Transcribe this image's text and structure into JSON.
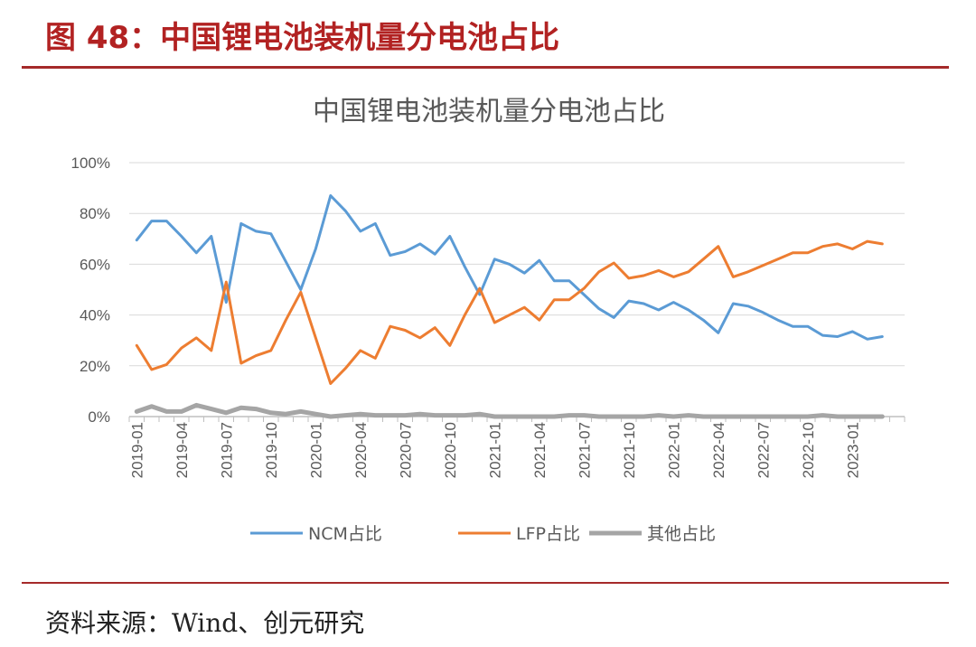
{
  "figure": {
    "title": "图 48：中国锂电池装机量分电池占比",
    "source": "资料来源：Wind、创元研究"
  },
  "chart_data": {
    "type": "line",
    "title": "中国锂电池装机量分电池占比",
    "ylim": [
      0,
      100
    ],
    "y_ticks": [
      "0%",
      "20%",
      "40%",
      "60%",
      "80%",
      "100%"
    ],
    "x_tick_labels": [
      "2019-01",
      "2019-04",
      "2019-07",
      "2019-10",
      "2020-01",
      "2020-04",
      "2020-07",
      "2020-10",
      "2021-01",
      "2021-04",
      "2021-07",
      "2021-10",
      "2022-01",
      "2022-04",
      "2022-07",
      "2022-10",
      "2023-01"
    ],
    "x": [
      "2019-01",
      "2019-02",
      "2019-03",
      "2019-04",
      "2019-05",
      "2019-06",
      "2019-07",
      "2019-08",
      "2019-09",
      "2019-10",
      "2019-11",
      "2019-12",
      "2020-01",
      "2020-02",
      "2020-03",
      "2020-04",
      "2020-05",
      "2020-06",
      "2020-07",
      "2020-08",
      "2020-09",
      "2020-10",
      "2020-11",
      "2020-12",
      "2021-01",
      "2021-02",
      "2021-03",
      "2021-04",
      "2021-05",
      "2021-06",
      "2021-07",
      "2021-08",
      "2021-09",
      "2021-10",
      "2021-11",
      "2021-12",
      "2022-01",
      "2022-02",
      "2022-03",
      "2022-04",
      "2022-05",
      "2022-06",
      "2022-07",
      "2022-08",
      "2022-09",
      "2022-10",
      "2022-11",
      "2022-12",
      "2023-01",
      "2023-02",
      "2023-03",
      "2023-04"
    ],
    "grid": true,
    "legend_position": "bottom",
    "series": [
      {
        "name": "NCM占比",
        "color": "#5b9bd5",
        "values": [
          69.5,
          77,
          77,
          71,
          64.5,
          71,
          45,
          76,
          73,
          72,
          61,
          50,
          66,
          87,
          81,
          73,
          76,
          63.5,
          65,
          68,
          64,
          71,
          59,
          48,
          62,
          60,
          56.5,
          61.5,
          53.5,
          53.5,
          48,
          42.5,
          39,
          45.5,
          44.5,
          42,
          45,
          42,
          38,
          33,
          44.5,
          43.5,
          41,
          38,
          35.5,
          35.5,
          32,
          31.5,
          33.5,
          30.5,
          31.5,
          null
        ]
      },
      {
        "name": "LFP占比",
        "color": "#ed7d31",
        "values": [
          28,
          18.5,
          20.5,
          27,
          31,
          26,
          53,
          21,
          24,
          26,
          38,
          49,
          31,
          13,
          19,
          26,
          23,
          35.5,
          34,
          31,
          35,
          28,
          40,
          50.5,
          37,
          40,
          43,
          38,
          46,
          46,
          50.5,
          57,
          60.5,
          54.5,
          55.5,
          57.5,
          55,
          57,
          62,
          67,
          55,
          57,
          59.5,
          62,
          64.5,
          64.5,
          67,
          68,
          66,
          69,
          68,
          null
        ]
      },
      {
        "name": "其他占比",
        "color": "#a5a5a5",
        "values": [
          2,
          4,
          2,
          2,
          4.5,
          3,
          1.5,
          3.5,
          3,
          1.5,
          1,
          2,
          1,
          0,
          0.5,
          1,
          0.5,
          0.5,
          0.5,
          1,
          0.5,
          0.5,
          0.5,
          1,
          0,
          0,
          0,
          0,
          0,
          0.5,
          0.5,
          0,
          0,
          0,
          0,
          0.5,
          0,
          0.5,
          0,
          0,
          0,
          0,
          0,
          0,
          0,
          0,
          0.5,
          0,
          0,
          0,
          0,
          null
        ]
      }
    ]
  }
}
